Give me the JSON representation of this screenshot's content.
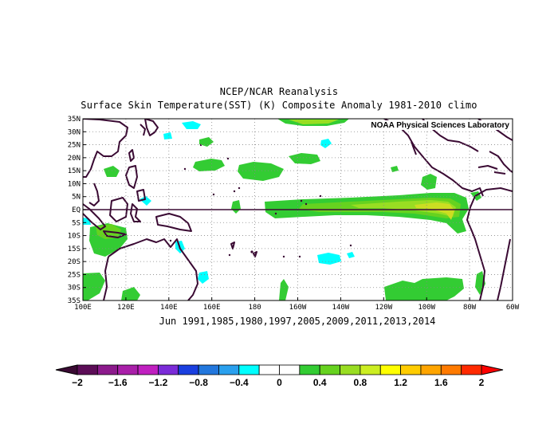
{
  "title": {
    "line1": "NCEP/NCAR Reanalysis",
    "line2": "Surface Skin Temperature(SST) (K) Composite Anomaly 1981-2010 climo"
  },
  "credit": "NOAA Physical Sciences Laboratory",
  "subtitle": "Jun 1991,1985,1980,1997,2005,2009,2011,2013,2014",
  "map": {
    "region": "Tropical Pacific",
    "lon_range": [
      100,
      300
    ],
    "lat_range": [
      -35,
      35
    ],
    "grid": "dotted",
    "equator_line": true,
    "lat_labels": [
      "35N",
      "30N",
      "25N",
      "20N",
      "15N",
      "10N",
      "5N",
      "EQ",
      "5S",
      "10S",
      "15S",
      "20S",
      "25S",
      "30S",
      "35S"
    ],
    "lon_labels": [
      "100E",
      "120E",
      "140E",
      "160E",
      "180",
      "160W",
      "140W",
      "120W",
      "100W",
      "80W",
      "60W"
    ]
  },
  "colorbar": {
    "labels": [
      "-2",
      "-1.6",
      "-1.2",
      "-0.8",
      "-0.4",
      "0",
      "0.4",
      "0.8",
      "1.2",
      "1.6",
      "2"
    ],
    "colors": [
      "#5c0d57",
      "#8c1a8c",
      "#a91fa9",
      "#c020c0",
      "#7b2bd8",
      "#1a3fe0",
      "#2277dd",
      "#2aa0ee",
      "#00ffff",
      "#ffffff",
      "#ffffff",
      "#33cc33",
      "#66d21f",
      "#99dd22",
      "#ccee22",
      "#ffff00",
      "#ffcc00",
      "#ffa500",
      "#ff7a00",
      "#ff2a00"
    ],
    "under_color": "#3a0a33",
    "over_color": "#ff0000"
  },
  "anomaly_features": [
    {
      "name": "Equatorial eastern Pacific warm tongue",
      "max_value": 1.0,
      "color": "#ccdd22"
    },
    {
      "name": "Central subtropical North Pacific warm patch",
      "max_value": 0.4,
      "color": "#33cc33"
    },
    {
      "name": "Southeast Pacific warm patch",
      "max_value": 0.4,
      "color": "#33cc33"
    },
    {
      "name": "Central South Pacific cool patch",
      "max_value": -0.4,
      "color": "#00ffff"
    }
  ]
}
